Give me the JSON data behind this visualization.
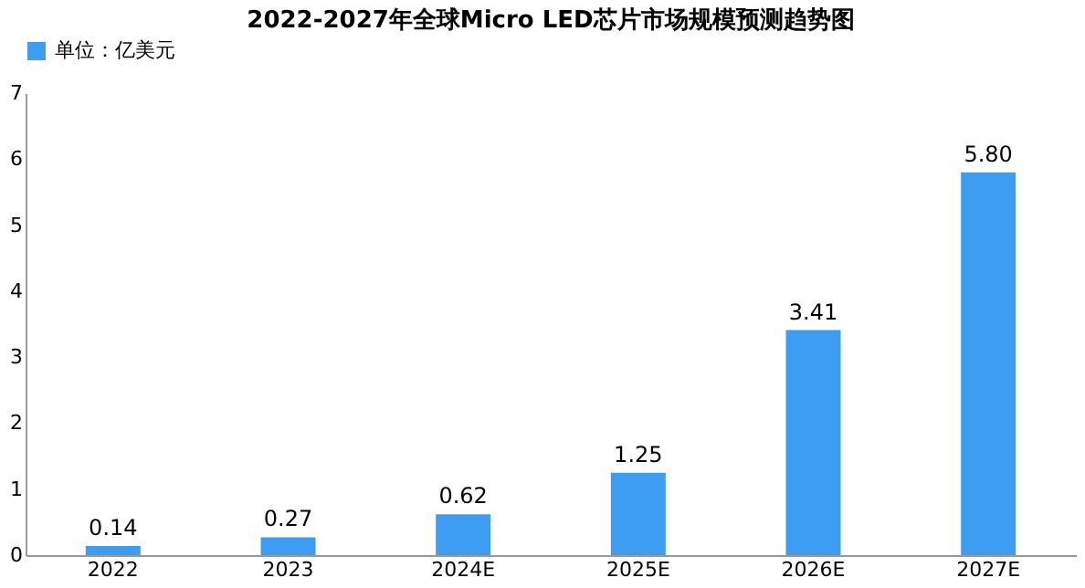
{
  "chart_data": {
    "type": "bar",
    "title": "2022-2027年全球Micro LED芯片市场规模预测趋势图",
    "categories": [
      "2022",
      "2023",
      "2024E",
      "2025E",
      "2026E",
      "2027E"
    ],
    "series": [
      {
        "name": "单位：亿美元",
        "color": "#3d9df2",
        "values": [
          0.14,
          0.27,
          0.62,
          1.25,
          3.41,
          5.8
        ],
        "value_labels": [
          "0.14",
          "0.27",
          "0.62",
          "1.25",
          "3.41",
          "5.80"
        ]
      }
    ],
    "ylim": [
      0,
      7
    ],
    "yticks": [
      0,
      1,
      2,
      3,
      4,
      5,
      6,
      7
    ],
    "grid": false,
    "legend": "top"
  }
}
